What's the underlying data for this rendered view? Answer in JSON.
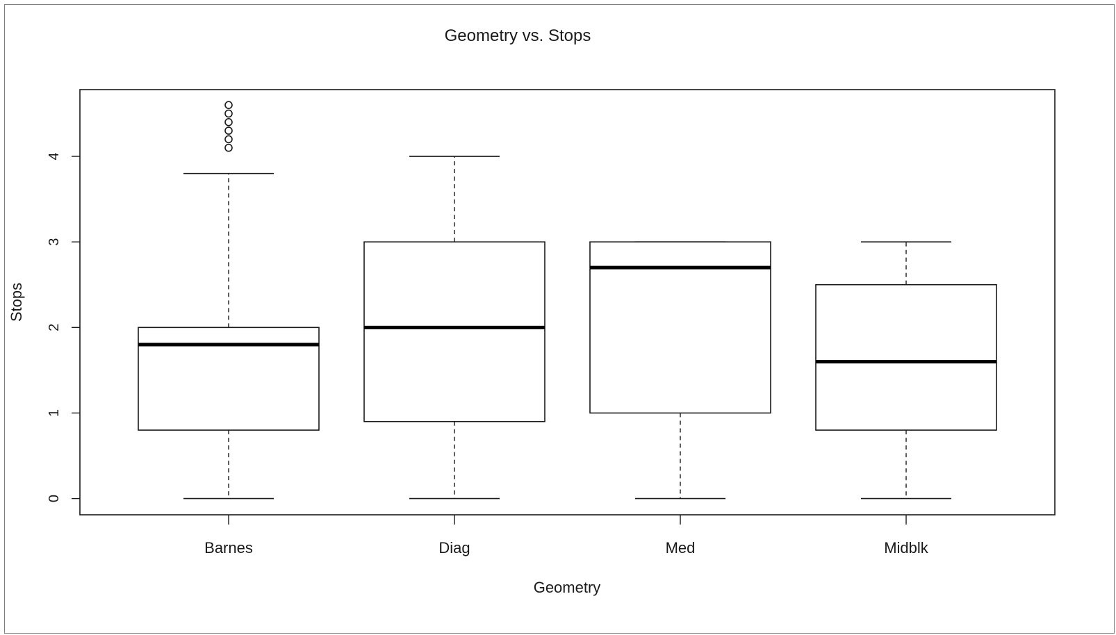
{
  "chart_data": {
    "type": "boxplot",
    "title": "Geometry vs. Stops",
    "xlabel": "Geometry",
    "ylabel": "Stops",
    "ylim": [
      -0.19,
      4.78
    ],
    "yticks": [
      0,
      1,
      2,
      3,
      4
    ],
    "grid": false,
    "legend": "none",
    "categories": [
      "Barnes",
      "Diag",
      "Med",
      "Midblk"
    ],
    "boxes": [
      {
        "category": "Barnes",
        "whisker_low": 0,
        "q1": 0.8,
        "median": 1.8,
        "q3": 2.0,
        "whisker_high": 3.8,
        "outliers": [
          4.1,
          4.2,
          4.3,
          4.4,
          4.5,
          4.6
        ]
      },
      {
        "category": "Diag",
        "whisker_low": 0,
        "q1": 0.9,
        "median": 2.0,
        "q3": 3.0,
        "whisker_high": 4.0,
        "outliers": []
      },
      {
        "category": "Med",
        "whisker_low": 0,
        "q1": 1.0,
        "median": 2.7,
        "q3": 3.0,
        "whisker_high": 3.0,
        "outliers": []
      },
      {
        "category": "Midblk",
        "whisker_low": 0,
        "q1": 0.8,
        "median": 1.6,
        "q3": 2.5,
        "whisker_high": 3.0,
        "outliers": []
      }
    ]
  }
}
